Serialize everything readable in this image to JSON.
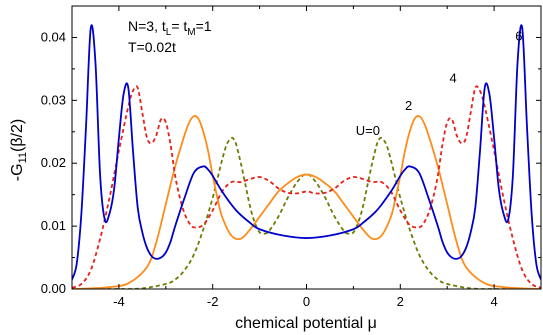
{
  "chart_data": {
    "type": "line",
    "xlabel": "chemical potential μ",
    "ylabel": "-G11(β/2)",
    "ylabel_parts": {
      "base": "-G",
      "sub": "11",
      "rest": "(β/2)"
    },
    "xlim": [
      -5,
      5
    ],
    "ylim": [
      0,
      0.045
    ],
    "xticks": [
      -4,
      -2,
      0,
      2,
      4
    ],
    "yticks": [
      0.0,
      0.01,
      0.02,
      0.03,
      0.04
    ],
    "ytick_labels": [
      "0.00",
      "0.01",
      "0.02",
      "0.03",
      "0.04"
    ],
    "grid": false,
    "annotation": {
      "line1": {
        "N": "N=3, t",
        "L": "L",
        "eq": "= t",
        "M": "M",
        "end": "=1"
      },
      "line2": "T=0.02t"
    },
    "series": [
      {
        "label": "6",
        "color": "#0000cc",
        "dash": "solid",
        "x": [
          -5.0,
          -4.9,
          -4.8,
          -4.7,
          -4.6,
          -4.5,
          -4.4,
          -4.3,
          -4.2,
          -4.1,
          -4.0,
          -3.9,
          -3.8,
          -3.7,
          -3.6,
          -3.5,
          -3.4,
          -3.3,
          -3.2,
          -3.1,
          -3.0,
          -2.9,
          -2.8,
          -2.6,
          -2.4,
          -2.2,
          -2.1,
          -2.0,
          -1.8,
          -1.5,
          -1.2,
          -1.0,
          -0.5,
          0.0,
          0.5,
          1.0,
          1.2,
          1.5,
          1.8,
          2.0,
          2.1,
          2.2,
          2.4,
          2.6,
          2.8,
          2.9,
          3.0,
          3.1,
          3.2,
          3.3,
          3.4,
          3.5,
          3.6,
          3.7,
          3.8,
          3.9,
          4.0,
          4.1,
          4.2,
          4.3,
          4.4,
          4.5,
          4.6,
          4.7,
          4.8,
          4.9,
          5.0
        ],
        "y": [
          0.0015,
          0.004,
          0.012,
          0.026,
          0.0415,
          0.036,
          0.018,
          0.011,
          0.012,
          0.016,
          0.024,
          0.031,
          0.032,
          0.022,
          0.013,
          0.009,
          0.0065,
          0.0052,
          0.0048,
          0.005,
          0.0058,
          0.0075,
          0.01,
          0.0145,
          0.0185,
          0.0195,
          0.019,
          0.018,
          0.0155,
          0.0125,
          0.0105,
          0.0095,
          0.0085,
          0.0081,
          0.0085,
          0.0095,
          0.0105,
          0.0125,
          0.0155,
          0.018,
          0.019,
          0.0195,
          0.0185,
          0.0145,
          0.01,
          0.0075,
          0.0058,
          0.005,
          0.0048,
          0.0052,
          0.0065,
          0.009,
          0.013,
          0.022,
          0.032,
          0.031,
          0.024,
          0.016,
          0.012,
          0.011,
          0.018,
          0.036,
          0.0415,
          0.026,
          0.012,
          0.004,
          0.0015
        ]
      },
      {
        "label": "4",
        "color": "#e8201a",
        "dash": "dashed",
        "x": [
          -5.0,
          -4.8,
          -4.6,
          -4.4,
          -4.2,
          -4.0,
          -3.8,
          -3.7,
          -3.6,
          -3.5,
          -3.4,
          -3.3,
          -3.2,
          -3.1,
          -3.0,
          -2.9,
          -2.8,
          -2.7,
          -2.6,
          -2.5,
          -2.4,
          -2.2,
          -2.0,
          -1.8,
          -1.6,
          -1.4,
          -1.2,
          -1.0,
          -0.8,
          -0.6,
          -0.4,
          -0.2,
          0.0,
          0.2,
          0.4,
          0.6,
          0.8,
          1.0,
          1.2,
          1.4,
          1.6,
          1.8,
          2.0,
          2.2,
          2.4,
          2.5,
          2.6,
          2.7,
          2.8,
          2.9,
          3.0,
          3.1,
          3.2,
          3.3,
          3.4,
          3.5,
          3.6,
          3.7,
          3.8,
          4.0,
          4.2,
          4.4,
          4.6,
          4.8,
          5.0
        ],
        "y": [
          0.0002,
          0.0008,
          0.003,
          0.008,
          0.0145,
          0.022,
          0.029,
          0.0315,
          0.032,
          0.028,
          0.024,
          0.0232,
          0.0245,
          0.027,
          0.0265,
          0.023,
          0.018,
          0.0145,
          0.012,
          0.0105,
          0.0098,
          0.0102,
          0.0125,
          0.0155,
          0.017,
          0.017,
          0.0175,
          0.0178,
          0.0172,
          0.016,
          0.0153,
          0.0152,
          0.0155,
          0.0152,
          0.0153,
          0.016,
          0.0172,
          0.0178,
          0.0175,
          0.017,
          0.017,
          0.0155,
          0.0125,
          0.0102,
          0.0098,
          0.0105,
          0.012,
          0.0145,
          0.018,
          0.023,
          0.0265,
          0.027,
          0.0245,
          0.0232,
          0.024,
          0.028,
          0.032,
          0.0315,
          0.029,
          0.022,
          0.0145,
          0.008,
          0.003,
          0.0008,
          0.0002
        ]
      },
      {
        "label": "2",
        "color": "#ff8c1a",
        "dash": "solid",
        "x": [
          -5.0,
          -4.6,
          -4.2,
          -3.8,
          -3.4,
          -3.2,
          -3.0,
          -2.8,
          -2.6,
          -2.5,
          -2.4,
          -2.3,
          -2.2,
          -2.1,
          -2.0,
          -1.9,
          -1.8,
          -1.6,
          -1.4,
          -1.2,
          -1.0,
          -0.8,
          -0.6,
          -0.4,
          -0.2,
          0.0,
          0.2,
          0.4,
          0.6,
          0.8,
          1.0,
          1.2,
          1.4,
          1.6,
          1.8,
          1.9,
          2.0,
          2.1,
          2.2,
          2.3,
          2.4,
          2.5,
          2.6,
          2.8,
          3.0,
          3.2,
          3.4,
          3.8,
          4.2,
          4.6,
          5.0
        ],
        "y": [
          0.0,
          0.0001,
          0.0003,
          0.0009,
          0.0035,
          0.0075,
          0.0135,
          0.0195,
          0.0245,
          0.0265,
          0.0275,
          0.027,
          0.025,
          0.022,
          0.018,
          0.0145,
          0.0115,
          0.0085,
          0.008,
          0.0095,
          0.0115,
          0.0135,
          0.0155,
          0.0168,
          0.0178,
          0.0182,
          0.0178,
          0.0168,
          0.0155,
          0.0135,
          0.0115,
          0.0095,
          0.008,
          0.0085,
          0.0115,
          0.0145,
          0.018,
          0.022,
          0.025,
          0.027,
          0.0275,
          0.0265,
          0.0245,
          0.0195,
          0.0135,
          0.0075,
          0.0035,
          0.0009,
          0.0003,
          0.0001,
          0.0
        ]
      },
      {
        "label": "U=0",
        "color": "#6e7b00",
        "dash": "dashed",
        "x": [
          -5.0,
          -4.0,
          -3.5,
          -3.0,
          -2.8,
          -2.6,
          -2.4,
          -2.2,
          -2.0,
          -1.9,
          -1.8,
          -1.7,
          -1.6,
          -1.55,
          -1.5,
          -1.4,
          -1.3,
          -1.2,
          -1.1,
          -1.0,
          -0.9,
          -0.8,
          -0.6,
          -0.4,
          -0.2,
          0.0,
          0.2,
          0.4,
          0.6,
          0.8,
          0.9,
          1.0,
          1.1,
          1.2,
          1.3,
          1.4,
          1.5,
          1.55,
          1.6,
          1.7,
          1.8,
          1.9,
          2.0,
          2.2,
          2.4,
          2.6,
          2.8,
          3.0,
          3.5,
          4.0,
          5.0
        ],
        "y": [
          0.0,
          0.0,
          0.0001,
          0.0008,
          0.0015,
          0.003,
          0.0055,
          0.0095,
          0.0145,
          0.0175,
          0.0205,
          0.023,
          0.024,
          0.0238,
          0.023,
          0.02,
          0.0165,
          0.013,
          0.0105,
          0.009,
          0.0088,
          0.0092,
          0.0115,
          0.0145,
          0.017,
          0.0183,
          0.017,
          0.0145,
          0.0115,
          0.0092,
          0.0088,
          0.009,
          0.0105,
          0.013,
          0.0165,
          0.02,
          0.023,
          0.0238,
          0.024,
          0.023,
          0.0205,
          0.0175,
          0.0145,
          0.0095,
          0.0055,
          0.003,
          0.0015,
          0.0008,
          0.0001,
          0.0,
          0.0
        ]
      }
    ],
    "curve_labels": [
      {
        "text": "6",
        "x": 4.45,
        "y": 0.0395
      },
      {
        "text": "4",
        "x": 3.05,
        "y": 0.0328
      },
      {
        "text": "2",
        "x": 2.1,
        "y": 0.0285
      },
      {
        "text": "U=0",
        "x": 1.05,
        "y": 0.0245
      }
    ]
  }
}
